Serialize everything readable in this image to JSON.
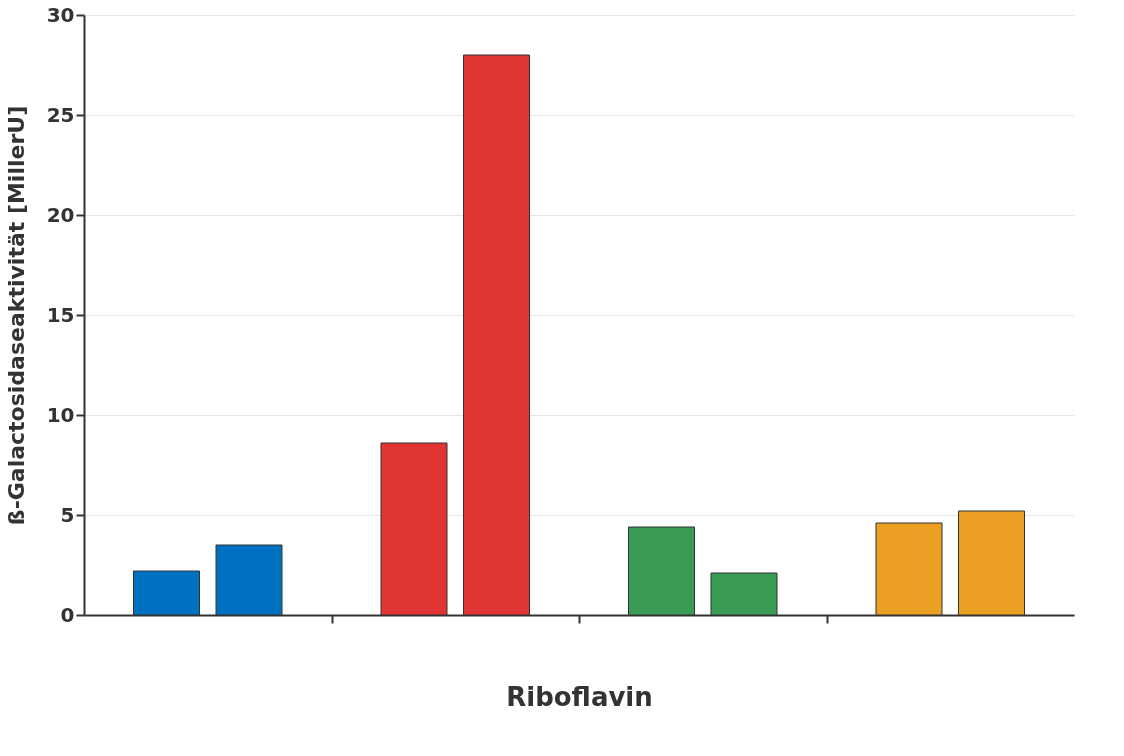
{
  "chart_data": {
    "type": "bar",
    "categories": [
      null,
      null,
      null,
      null,
      null,
      null,
      null,
      null
    ],
    "values": [
      2.2,
      3.5,
      8.6,
      28,
      4.4,
      2.1,
      4.6,
      5.2
    ],
    "colors": [
      "#0070c0",
      "#0070c0",
      "#e03532",
      "#e03532",
      "#3a9b54",
      "#3a9b54",
      "#eba023",
      "#eba023"
    ],
    "xlabel": "Riboflavin",
    "ylabel": "ß-Galactosidaseaktivität [MillerU]",
    "ylim": [
      0,
      30
    ],
    "yticks": [
      0,
      5,
      10,
      15,
      20,
      25,
      30
    ],
    "grid": "y",
    "tick_labels": "y"
  }
}
